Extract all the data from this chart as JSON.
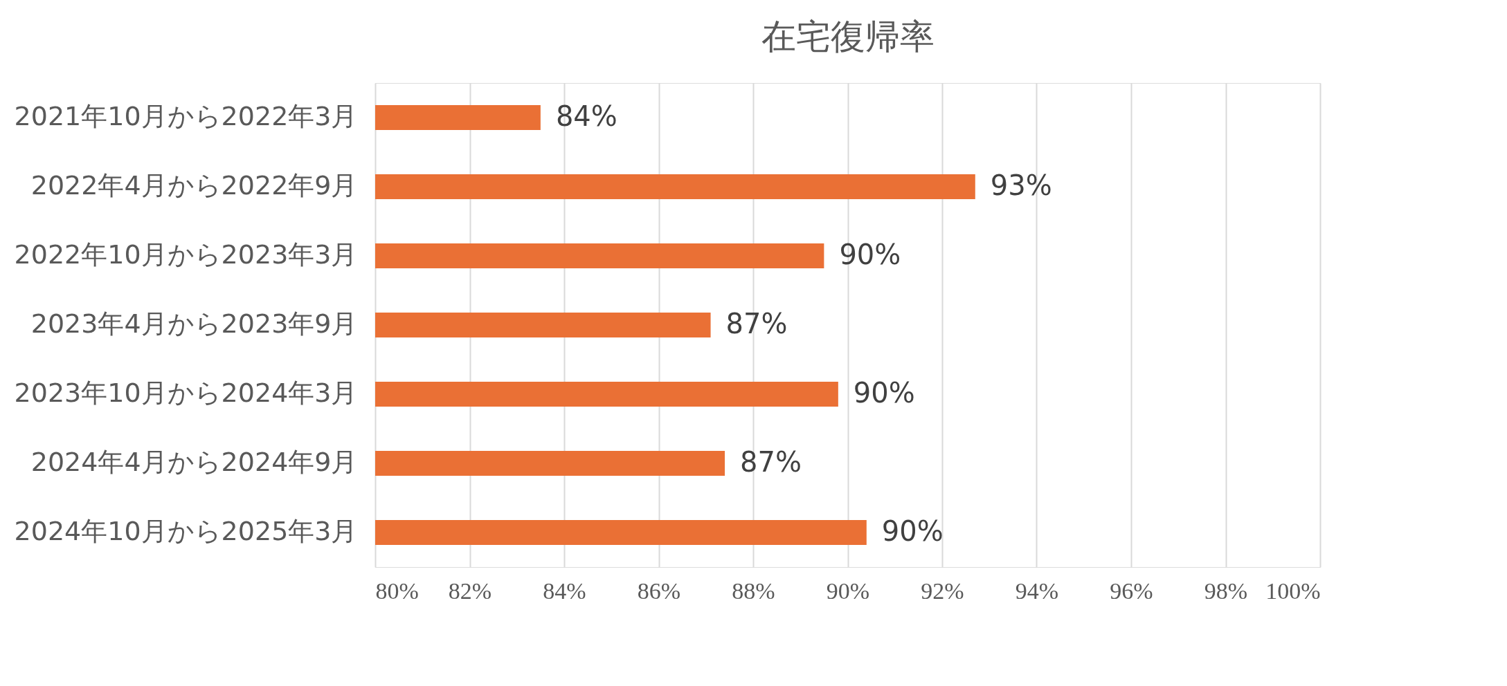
{
  "chart_data": {
    "type": "bar",
    "orientation": "horizontal",
    "title": "在宅復帰率",
    "categories": [
      "2021年10月から2022年3月",
      "2022年4月から2022年9月",
      "2022年10月から2023年3月",
      "2023年4月から2023年9月",
      "2023年10月から2024年3月",
      "2024年4月から2024年9月",
      "2024年10月から2025年3月"
    ],
    "values": [
      83.5,
      92.7,
      89.5,
      87.1,
      89.8,
      87.4,
      90.4
    ],
    "value_labels": [
      "84%",
      "93%",
      "90%",
      "87%",
      "90%",
      "87%",
      "90%"
    ],
    "color": "#ea7035",
    "xlim": [
      80,
      100
    ],
    "xticks": [
      {
        "value": 80,
        "label": "80%"
      },
      {
        "value": 82,
        "label": "82%"
      },
      {
        "value": 84,
        "label": "84%"
      },
      {
        "value": 86,
        "label": "86%"
      },
      {
        "value": 88,
        "label": "88%"
      },
      {
        "value": 90,
        "label": "90%"
      },
      {
        "value": 92,
        "label": "92%"
      },
      {
        "value": 94,
        "label": "94%"
      },
      {
        "value": 96,
        "label": "96%"
      },
      {
        "value": 98,
        "label": "98%"
      },
      {
        "value": 100,
        "label": "100%"
      }
    ],
    "grid": "x"
  }
}
